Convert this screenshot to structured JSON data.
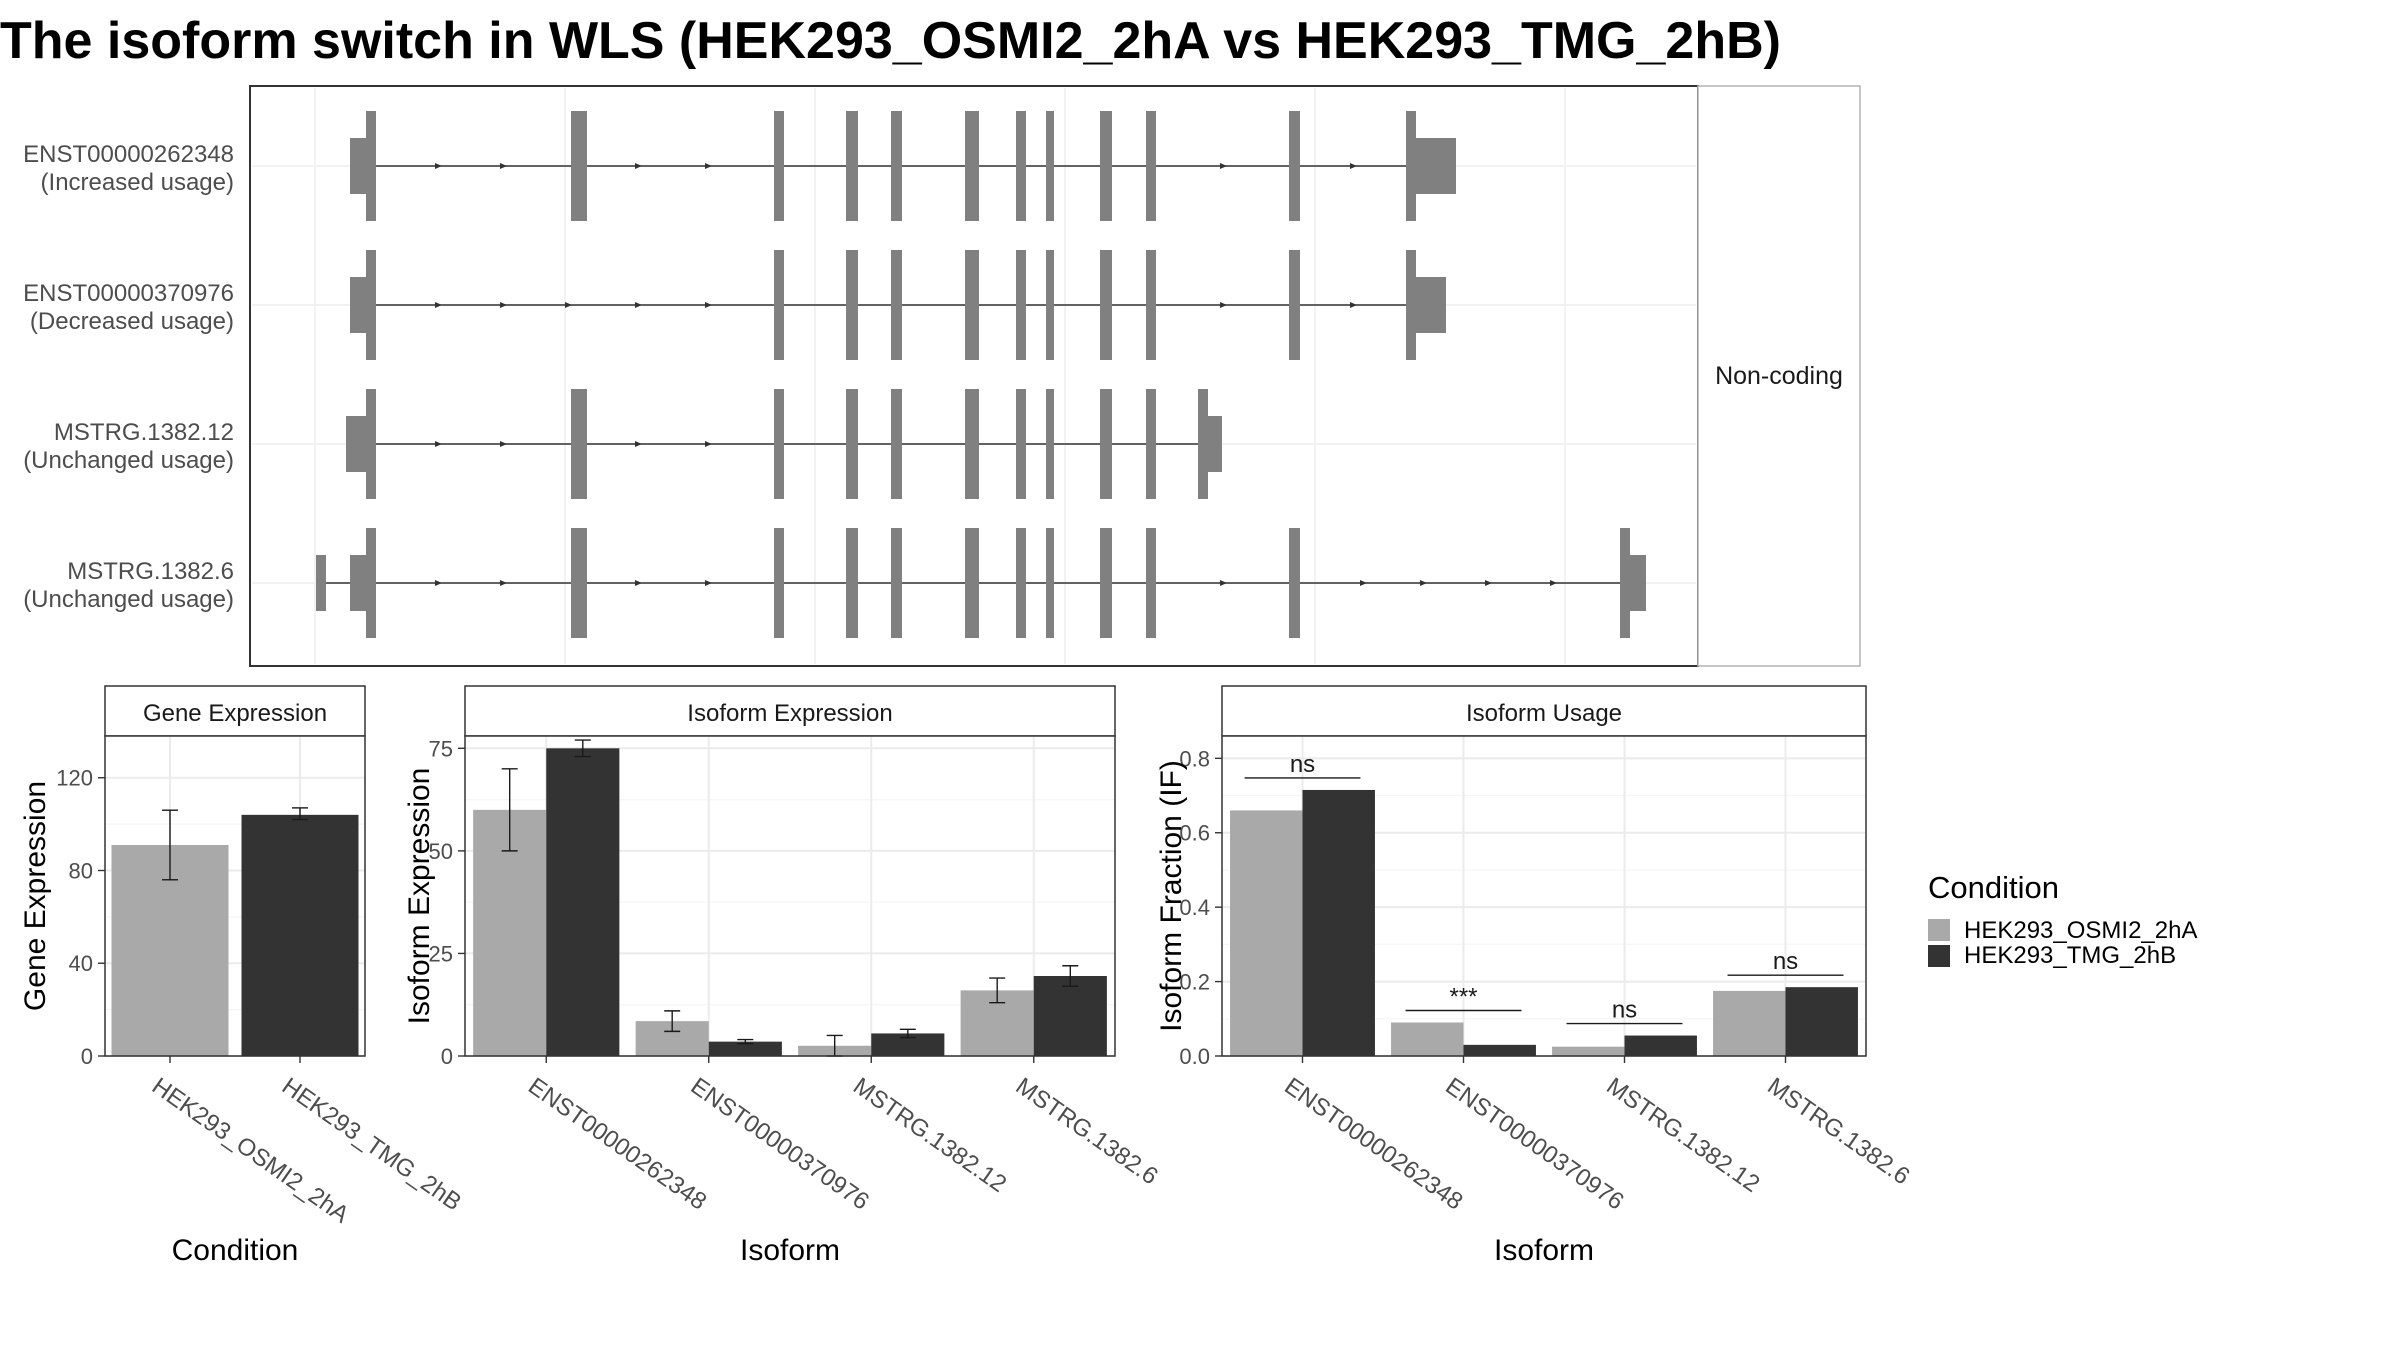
{
  "title": "The isoform switch in WLS (HEK293_OSMI2_2hA vs HEK293_TMG_2hB)",
  "colors": {
    "cond_a": "#a9a9a9",
    "cond_b": "#333333",
    "exon": "#808080",
    "grid": "#ebebeb",
    "panel_border": "#333333"
  },
  "structure": {
    "strip_label": "Non-coding",
    "transcripts": [
      {
        "id": "ENST00000262348",
        "usage": "(Increased usage)"
      },
      {
        "id": "ENST00000370976",
        "usage": "(Decreased usage)"
      },
      {
        "id": "MSTRG.1382.12",
        "usage": "(Unchanged usage)"
      },
      {
        "id": "MSTRG.1382.6",
        "usage": "(Unchanged usage)"
      }
    ]
  },
  "legend": {
    "title": "Condition",
    "entries": [
      "HEK293_OSMI2_2hA",
      "HEK293_TMG_2hB"
    ]
  },
  "chart_data": [
    {
      "type": "bar",
      "title": "Gene Expression",
      "xlabel": "Condition",
      "ylabel": "Gene Expression",
      "ylim": [
        0,
        138
      ],
      "yticks": [
        0,
        40,
        80,
        120
      ],
      "categories": [
        "HEK293_OSMI2_2hA",
        "HEK293_TMG_2hB"
      ],
      "values": [
        91,
        104
      ],
      "errors": [
        [
          76,
          106
        ],
        [
          102,
          107
        ]
      ]
    },
    {
      "type": "bar",
      "title": "Isoform Expression",
      "xlabel": "Isoform",
      "ylabel": "Isoform Expression",
      "ylim": [
        0,
        78
      ],
      "yticks": [
        0,
        25,
        50,
        75
      ],
      "categories": [
        "ENST00000262348",
        "ENST00000370976",
        "MSTRG.1382.12",
        "MSTRG.1382.6"
      ],
      "series": [
        {
          "name": "HEK293_OSMI2_2hA",
          "values": [
            60,
            8.5,
            2.5,
            16
          ],
          "errors": [
            [
              50,
              70
            ],
            [
              6,
              11
            ],
            [
              0,
              5
            ],
            [
              13,
              19
            ]
          ]
        },
        {
          "name": "HEK293_TMG_2hB",
          "values": [
            75,
            3.5,
            5.5,
            19.5
          ],
          "errors": [
            [
              73,
              77
            ],
            [
              3,
              4
            ],
            [
              4.5,
              6.5
            ],
            [
              17,
              22
            ]
          ]
        }
      ]
    },
    {
      "type": "bar",
      "title": "Isoform Usage",
      "xlabel": "Isoform",
      "ylabel": "Isoform Fraction (IF)",
      "ylim": [
        0,
        0.86
      ],
      "yticks": [
        "0.0",
        "0.2",
        "0.4",
        "0.6",
        "0.8"
      ],
      "categories": [
        "ENST00000262348",
        "ENST00000370976",
        "MSTRG.1382.12",
        "MSTRG.1382.6"
      ],
      "series": [
        {
          "name": "HEK293_OSMI2_2hA",
          "values": [
            0.66,
            0.09,
            0.025,
            0.175
          ]
        },
        {
          "name": "HEK293_TMG_2hB",
          "values": [
            0.715,
            0.03,
            0.055,
            0.185
          ]
        }
      ],
      "significance": [
        "ns",
        "***",
        "ns",
        "ns"
      ]
    }
  ]
}
